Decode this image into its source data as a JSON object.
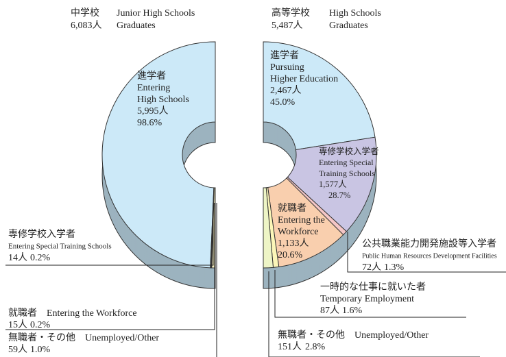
{
  "chart_data": [
    {
      "type": "pie",
      "title": [
        "中学校",
        "Junior High Schools"
      ],
      "subtitle": [
        "Graduates"
      ],
      "total": {
        "value": 6083,
        "label": "6,083人"
      },
      "direction": "left",
      "labels": [
        [
          "進学者",
          "Entering",
          "High Schools"
        ],
        [
          "専修学校入学者",
          "Entering Special Training Schools"
        ],
        [
          "就職者",
          "Entering the Workforce"
        ],
        [
          "無職者・その他",
          "Unemployed/Other"
        ]
      ],
      "counts": [
        5995,
        14,
        15,
        59
      ],
      "count_labels": [
        "5,995人",
        "14人",
        "15人",
        "59人"
      ],
      "values": [
        98.6,
        0.2,
        0.2,
        1.0
      ],
      "value_labels": [
        "98.6%",
        "0.2%",
        "0.2%",
        "1.0%"
      ],
      "colors": [
        "#cce9f8",
        "#f3c9d3",
        "#f9cfae",
        "#f8f0c0"
      ]
    },
    {
      "type": "pie",
      "title": [
        "高等学校",
        "High Schools"
      ],
      "subtitle": [
        "Graduates"
      ],
      "total": {
        "value": 5487,
        "label": "5,487人"
      },
      "direction": "right",
      "labels": [
        [
          "進学者",
          "Pursuing",
          "Higher Education"
        ],
        [
          "専修学校入学者",
          "Entering Special",
          "Training Schools"
        ],
        [
          "公共職業能力開発施設等入学者",
          "Public Human Resources Development Facilities"
        ],
        [
          "就職者",
          "Entering the",
          "Workforce"
        ],
        [
          "一時的な仕事に就いた者",
          "Temporary Employment"
        ],
        [
          "無職者・その他",
          "Unemployed/Other"
        ]
      ],
      "counts": [
        2467,
        1577,
        72,
        1133,
        87,
        151
      ],
      "count_labels": [
        "2,467人",
        "1,577人",
        "72人",
        "1,133人",
        "87人",
        "151人"
      ],
      "values": [
        45.0,
        28.7,
        1.3,
        20.6,
        1.6,
        2.8
      ],
      "value_labels": [
        "45.0%",
        "28.7%",
        "1.3%",
        "20.6%",
        "1.6%",
        "2.8%"
      ],
      "colors": [
        "#cce9f8",
        "#c9c5e3",
        "#f4c6c6",
        "#f9cfae",
        "#fbf6b8",
        "#eef5c6"
      ]
    }
  ]
}
